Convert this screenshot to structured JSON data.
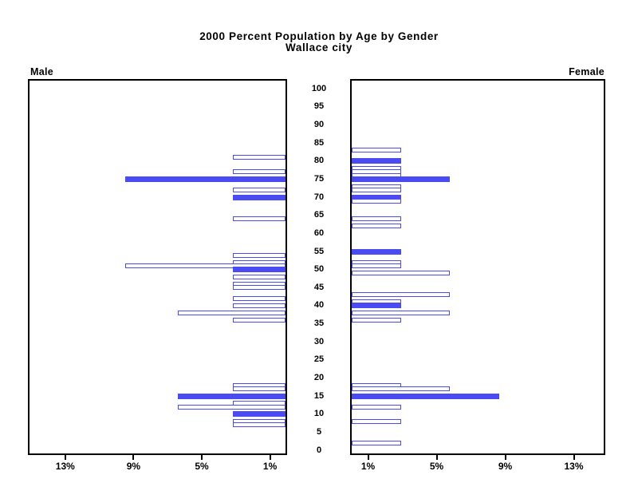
{
  "title": {
    "line1": "2000 Percent Population by Age by Gender",
    "line2": "Wallace city"
  },
  "left_panel_label": "Male",
  "right_panel_label": "Female",
  "colors": {
    "bar_blue": "#4B4BF3",
    "axis_black": "#000000",
    "background": "#FFFFFF"
  },
  "chart_data": {
    "type": "bar",
    "subtype": "population-pyramid",
    "title": "2000 Percent Population by Age by Gender",
    "subtitle": "Wallace city",
    "age_axis": {
      "label_position": "center",
      "min": 0,
      "max": 100,
      "tick_step": 5,
      "ticks": [
        0,
        5,
        10,
        15,
        20,
        25,
        30,
        35,
        40,
        45,
        50,
        55,
        60,
        65,
        70,
        75,
        80,
        85,
        90,
        95,
        100
      ]
    },
    "pct_axis": {
      "tick_values": [
        1,
        5,
        9,
        13
      ],
      "male_tick_labels": [
        "13%",
        "9%",
        "5%",
        "1%"
      ],
      "female_tick_labels": [
        "1%",
        "5%",
        "9%",
        "13%"
      ],
      "axis_max_pct": 15.2
    },
    "legend": {
      "filled_bar_meaning": "solid blue bar",
      "hollow_bar_meaning": "outlined bar"
    },
    "series": [
      {
        "name": "Male",
        "side": "left",
        "bars": [
          {
            "age": 81,
            "pct": 3.1,
            "filled": false
          },
          {
            "age": 77,
            "pct": 3.1,
            "filled": false
          },
          {
            "age": 75,
            "pct": 9.4,
            "filled": true
          },
          {
            "age": 72,
            "pct": 3.1,
            "filled": false
          },
          {
            "age": 70,
            "pct": 3.1,
            "filled": true
          },
          {
            "age": 64,
            "pct": 3.1,
            "filled": false
          },
          {
            "age": 54,
            "pct": 3.1,
            "filled": false
          },
          {
            "age": 52,
            "pct": 3.1,
            "filled": false
          },
          {
            "age": 51,
            "pct": 9.4,
            "filled": false
          },
          {
            "age": 50,
            "pct": 3.1,
            "filled": true
          },
          {
            "age": 48,
            "pct": 3.1,
            "filled": false
          },
          {
            "age": 46,
            "pct": 3.1,
            "filled": false
          },
          {
            "age": 45,
            "pct": 3.1,
            "filled": false
          },
          {
            "age": 42,
            "pct": 3.1,
            "filled": false
          },
          {
            "age": 40,
            "pct": 3.1,
            "filled": false
          },
          {
            "age": 38,
            "pct": 6.3,
            "filled": false
          },
          {
            "age": 36,
            "pct": 3.1,
            "filled": false
          },
          {
            "age": 18,
            "pct": 3.1,
            "filled": false
          },
          {
            "age": 17,
            "pct": 3.1,
            "filled": false
          },
          {
            "age": 15,
            "pct": 6.3,
            "filled": true
          },
          {
            "age": 13,
            "pct": 3.1,
            "filled": false
          },
          {
            "age": 12,
            "pct": 6.3,
            "filled": false
          },
          {
            "age": 10,
            "pct": 3.1,
            "filled": true
          },
          {
            "age": 8,
            "pct": 3.1,
            "filled": false
          },
          {
            "age": 7,
            "pct": 3.1,
            "filled": false
          }
        ]
      },
      {
        "name": "Female",
        "side": "right",
        "bars": [
          {
            "age": 83,
            "pct": 2.9,
            "filled": false
          },
          {
            "age": 80,
            "pct": 2.9,
            "filled": true
          },
          {
            "age": 78,
            "pct": 2.9,
            "filled": false
          },
          {
            "age": 77,
            "pct": 2.9,
            "filled": false
          },
          {
            "age": 76,
            "pct": 2.9,
            "filled": false
          },
          {
            "age": 75,
            "pct": 5.7,
            "filled": true
          },
          {
            "age": 73,
            "pct": 2.9,
            "filled": false
          },
          {
            "age": 72,
            "pct": 2.9,
            "filled": false
          },
          {
            "age": 70,
            "pct": 2.9,
            "filled": true
          },
          {
            "age": 69,
            "pct": 2.9,
            "filled": false
          },
          {
            "age": 64,
            "pct": 2.9,
            "filled": false
          },
          {
            "age": 62,
            "pct": 2.9,
            "filled": false
          },
          {
            "age": 55,
            "pct": 2.9,
            "filled": true
          },
          {
            "age": 52,
            "pct": 2.9,
            "filled": false
          },
          {
            "age": 51,
            "pct": 2.9,
            "filled": false
          },
          {
            "age": 49,
            "pct": 5.7,
            "filled": false
          },
          {
            "age": 43,
            "pct": 5.7,
            "filled": false
          },
          {
            "age": 41,
            "pct": 2.9,
            "filled": false
          },
          {
            "age": 40,
            "pct": 2.9,
            "filled": true
          },
          {
            "age": 38,
            "pct": 5.7,
            "filled": false
          },
          {
            "age": 36,
            "pct": 2.9,
            "filled": false
          },
          {
            "age": 18,
            "pct": 2.9,
            "filled": false
          },
          {
            "age": 17,
            "pct": 5.7,
            "filled": false
          },
          {
            "age": 15,
            "pct": 8.6,
            "filled": true
          },
          {
            "age": 12,
            "pct": 2.9,
            "filled": false
          },
          {
            "age": 8,
            "pct": 2.9,
            "filled": false
          },
          {
            "age": 2,
            "pct": 2.9,
            "filled": false
          }
        ]
      }
    ]
  }
}
